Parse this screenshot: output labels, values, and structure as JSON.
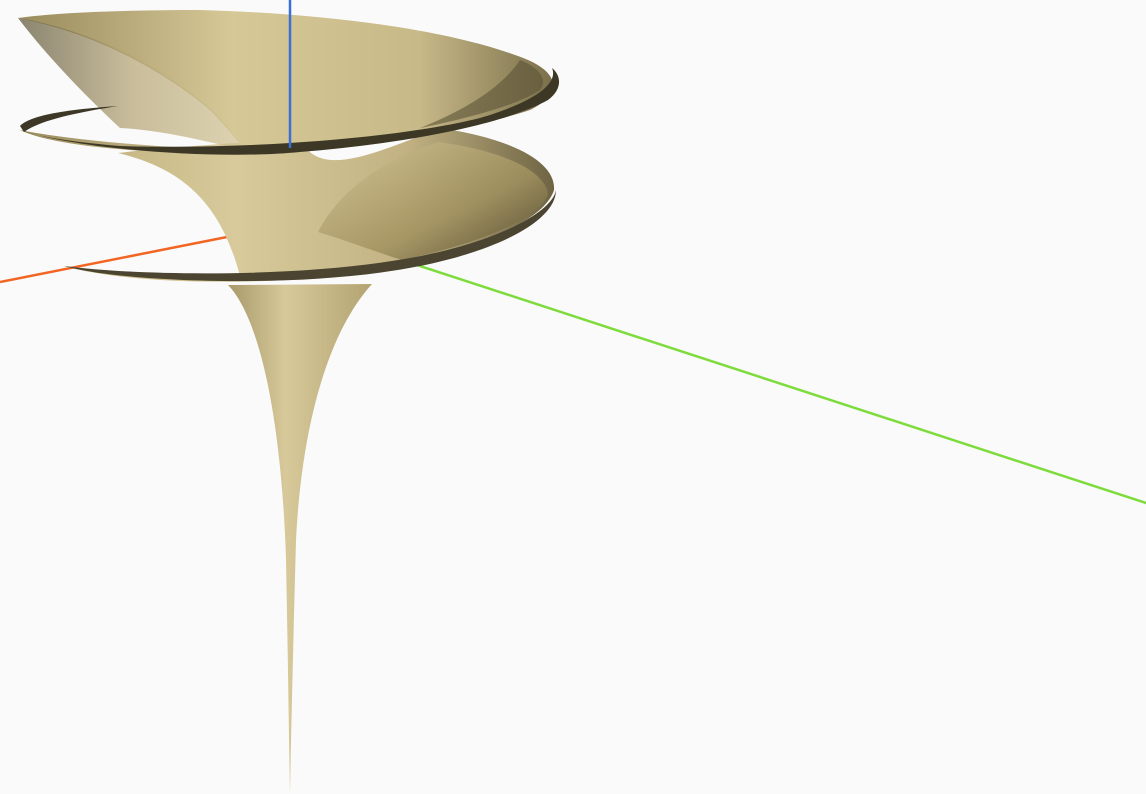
{
  "viewport": {
    "background": "#fafafa",
    "object": "dini-surface",
    "surface_colors": {
      "light": "#d4c595",
      "mid": "#bcac7a",
      "dark": "#5c5437",
      "rim": "#3d3826"
    },
    "axes": {
      "x_color": "#f26522",
      "y_color": "#7ddc3c",
      "z_color": "#3a6fd8"
    }
  }
}
